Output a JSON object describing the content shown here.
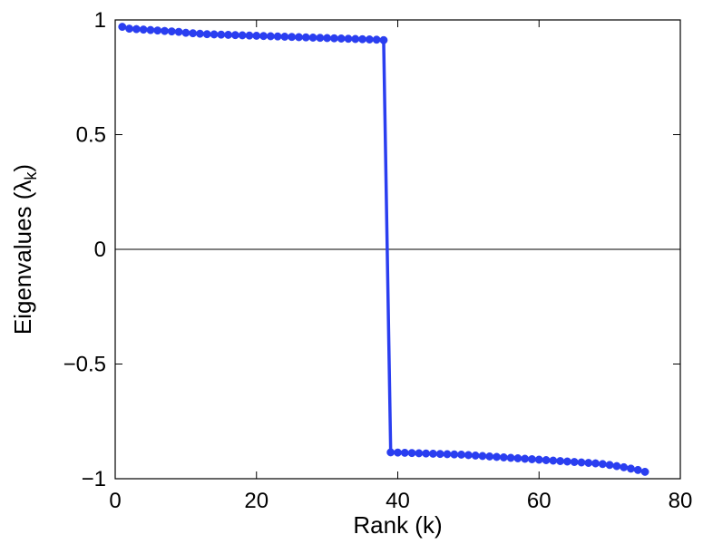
{
  "chart_data": {
    "type": "line",
    "xlabel": "Rank (k)",
    "ylabel_main": "Eigenvalues (λ",
    "ylabel_sub": "k",
    "ylabel_close": ")",
    "xlim": [
      0,
      80
    ],
    "ylim": [
      -1,
      1
    ],
    "xticks": [
      0,
      20,
      40,
      60,
      80
    ],
    "xtick_labels": [
      "0",
      "20",
      "40",
      "60",
      "80"
    ],
    "yticks": [
      -1,
      -0.5,
      0,
      0.5,
      1
    ],
    "ytick_labels": [
      "−1",
      "−0.5",
      "0",
      "0.5",
      "1"
    ],
    "zero_line": true,
    "grid": false,
    "colors": {
      "series": "#2a3ef0",
      "axis": "#000000"
    },
    "series": [
      {
        "marker": "circle",
        "x": [
          1,
          2,
          3,
          4,
          5,
          6,
          7,
          8,
          9,
          10,
          11,
          12,
          13,
          14,
          15,
          16,
          17,
          18,
          19,
          20,
          21,
          22,
          23,
          24,
          25,
          26,
          27,
          28,
          29,
          30,
          31,
          32,
          33,
          34,
          35,
          36,
          37,
          38,
          39,
          40,
          41,
          42,
          43,
          44,
          45,
          46,
          47,
          48,
          49,
          50,
          51,
          52,
          53,
          54,
          55,
          56,
          57,
          58,
          59,
          60,
          61,
          62,
          63,
          64,
          65,
          66,
          67,
          68,
          69,
          70,
          71,
          72,
          73,
          74,
          75
        ],
        "y": [
          0.97,
          0.962,
          0.96,
          0.958,
          0.956,
          0.954,
          0.952,
          0.95,
          0.948,
          0.944,
          0.942,
          0.94,
          0.938,
          0.937,
          0.936,
          0.935,
          0.934,
          0.933,
          0.932,
          0.931,
          0.93,
          0.929,
          0.928,
          0.927,
          0.926,
          0.925,
          0.924,
          0.923,
          0.922,
          0.921,
          0.92,
          0.919,
          0.918,
          0.917,
          0.916,
          0.915,
          0.914,
          0.912,
          -0.885,
          -0.886,
          -0.887,
          -0.888,
          -0.889,
          -0.89,
          -0.891,
          -0.892,
          -0.893,
          -0.894,
          -0.895,
          -0.897,
          -0.899,
          -0.901,
          -0.903,
          -0.905,
          -0.907,
          -0.909,
          -0.911,
          -0.913,
          -0.915,
          -0.917,
          -0.919,
          -0.921,
          -0.923,
          -0.925,
          -0.927,
          -0.929,
          -0.931,
          -0.933,
          -0.936,
          -0.94,
          -0.945,
          -0.95,
          -0.956,
          -0.962,
          -0.97
        ]
      }
    ]
  }
}
